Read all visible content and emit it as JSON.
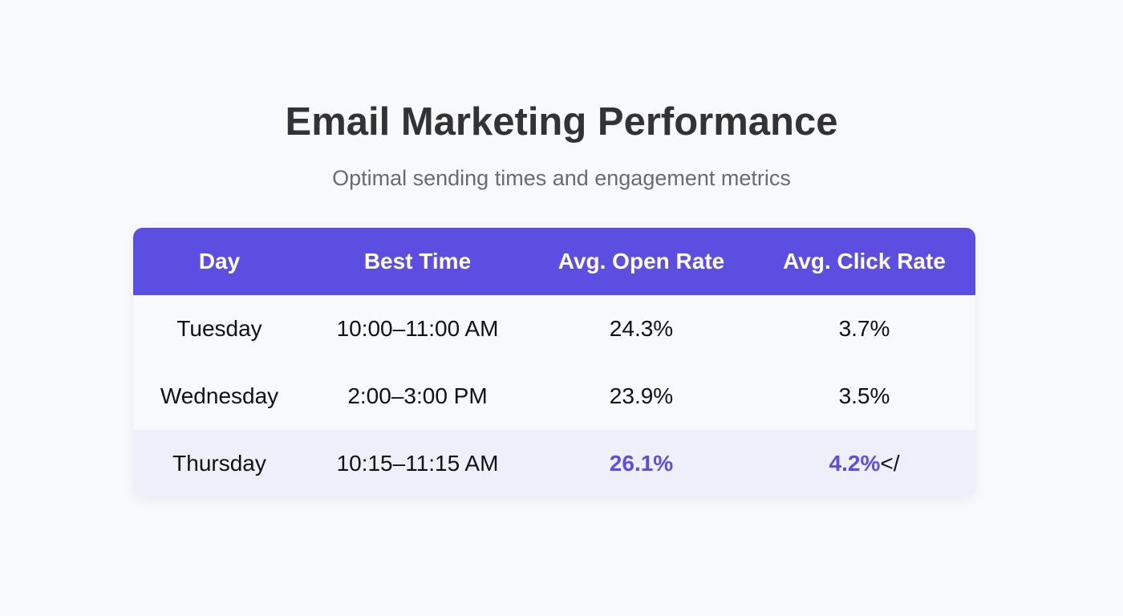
{
  "header": {
    "title": "Email Marketing Performance",
    "subtitle": "Optimal sending times and engagement metrics"
  },
  "table": {
    "columns": [
      "Day",
      "Best Time",
      "Avg. Open Rate",
      "Avg. Click Rate"
    ],
    "rows": [
      {
        "day": "Tuesday",
        "time": "10:00–11:00 AM",
        "open": "24.3%",
        "click": "3.7%",
        "click_suffix": ""
      },
      {
        "day": "Wednesday",
        "time": "2:00–3:00 PM",
        "open": "23.9%",
        "click": "3.5%",
        "click_suffix": ""
      },
      {
        "day": "Thursday",
        "time": "10:15–11:15 AM",
        "open": "26.1%",
        "click": "4.2%",
        "click_suffix": "</"
      }
    ],
    "highlighted_row": 2
  },
  "colors": {
    "accent": "#5d4ee2",
    "highlight_row_bg": "#efeffc",
    "background": "#f8f9fb"
  }
}
